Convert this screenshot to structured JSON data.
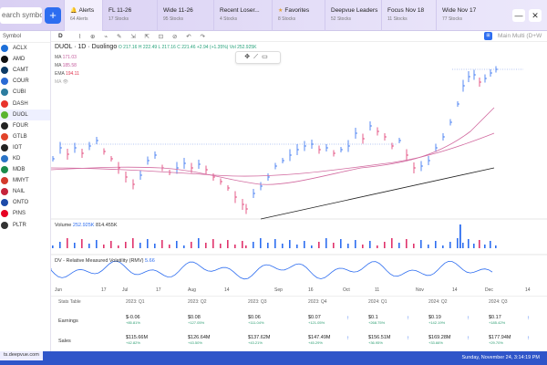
{
  "search": {
    "placeholder": "earch symbol"
  },
  "topbar": {
    "tabs": [
      {
        "title": "Alerts",
        "sub": "64 Alerts"
      },
      {
        "title": "FL 11-26",
        "sub": "17 Stocks"
      },
      {
        "title": "Wide 11-26",
        "sub": "95 Stocks"
      },
      {
        "title": "Recent Loser...",
        "sub": "4 Stocks"
      },
      {
        "title": "Favorites",
        "sub": "8 Stocks"
      },
      {
        "title": "Deepvue Leaders",
        "sub": "52 Stocks"
      },
      {
        "title": "Focus Nov 18",
        "sub": "11 Stocks"
      },
      {
        "title": "Wide Nov 17",
        "sub": "77 Stocks"
      }
    ],
    "minimize": "—",
    "close": "✕"
  },
  "sidebar": {
    "header": "Symbol",
    "items": [
      {
        "symbol": "ACLX",
        "color": "#1d6fd8"
      },
      {
        "symbol": "AMD",
        "color": "#111111"
      },
      {
        "symbol": "CAMT",
        "color": "#0d3b66"
      },
      {
        "symbol": "COUR",
        "color": "#2a6ad4"
      },
      {
        "symbol": "CUBI",
        "color": "#2b7c9f"
      },
      {
        "symbol": "DASH",
        "color": "#e8332b"
      },
      {
        "symbol": "DUOL",
        "color": "#58b42f"
      },
      {
        "symbol": "FOUR",
        "color": "#222222"
      },
      {
        "symbol": "GTLB",
        "color": "#e2432a"
      },
      {
        "symbol": "IOT",
        "color": "#222222"
      },
      {
        "symbol": "KD",
        "color": "#2a73c6"
      },
      {
        "symbol": "MDB",
        "color": "#1b8c4a"
      },
      {
        "symbol": "MMYT",
        "color": "#d33a2c"
      },
      {
        "symbol": "NAIL",
        "color": "#c5233b"
      },
      {
        "symbol": "ONTO",
        "color": "#1c4aa8"
      },
      {
        "symbol": "PINS",
        "color": "#e60023"
      },
      {
        "symbol": "PLTR",
        "color": "#333333"
      }
    ],
    "active_index": 6
  },
  "toolbar": {
    "interval": "D",
    "right_label": "Main Multi (D+W",
    "blue_btn": "⊞"
  },
  "chart_info": {
    "title": "DUOL · 1D · Duolingo",
    "ohlc": "O 217.16 H 222.49 L 217.16 C 221.46 +2.94 (+1.35%) Vol 252.925K",
    "ma1_label": "MA",
    "ma1_value": "171.03",
    "ma2_label": "MA",
    "ma2_value": "185.58",
    "ema_label": "EMA",
    "ema_value": "194.11",
    "hide_label": "MA"
  },
  "volume_label": {
    "title": "Volume",
    "v1": "252.925K",
    "v2": "814.455K"
  },
  "rmv_label": {
    "title": "DV - Relative Measured Volatility (RMV)",
    "value": "5.66"
  },
  "xaxis": [
    "Jun",
    "17",
    "Jul",
    "17",
    "Aug",
    "14",
    "Sep",
    "16",
    "Oct",
    "11",
    "Nov",
    "14",
    "Dec",
    "14"
  ],
  "stats": {
    "title": "Stats Table",
    "headers": [
      "2023: Q1",
      "2023: Q2",
      "2023: Q3",
      "2023: Q4",
      "2024: Q1",
      "2024: Q2",
      "2024: Q3"
    ],
    "earnings_label": "Earnings",
    "sales_label": "Sales",
    "earnings": [
      {
        "v": "$-0.06",
        "p": "+85.81%"
      },
      {
        "v": "$0.08",
        "p": "+127.05%"
      },
      {
        "v": "$0.06",
        "p": "+111.04%"
      },
      {
        "v": "$0.07",
        "p": "+121.05%"
      },
      {
        "v": "$0.1",
        "p": "+268.75%"
      },
      {
        "v": "$0.19",
        "p": "+142.19%"
      },
      {
        "v": "$0.17",
        "p": "+185.42%"
      }
    ],
    "sales": [
      {
        "v": "$115.66M",
        "p": "+42.82%"
      },
      {
        "v": "$126.64M",
        "p": "+43.50%"
      },
      {
        "v": "$137.62M",
        "p": "+43.21%"
      },
      {
        "v": "$147.49M",
        "p": "+45.29%"
      },
      {
        "v": "$156.51M",
        "p": "+36.95%"
      },
      {
        "v": "$169.28M",
        "p": "+33.66%"
      },
      {
        "v": "$177.94M",
        "p": "+29.70%"
      }
    ]
  },
  "statusbar": {
    "url": "ts.deepvue.com",
    "time": "Sunday, November 24, 3:14:19 PM"
  },
  "colors": {
    "accent": "#2d6df0",
    "up": "#2d6df0",
    "down": "#e0336c",
    "ma_pink": "#d26ba0"
  }
}
